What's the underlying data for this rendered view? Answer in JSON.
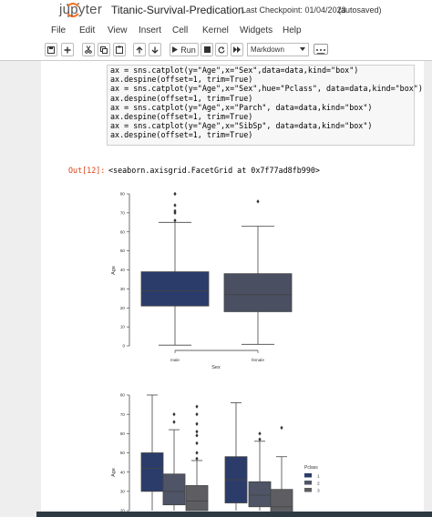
{
  "header": {
    "logo_text": "jupyter",
    "notebook_title": "Titanic-Survival-Predication",
    "checkpoint": "Last Checkpoint: 01/04/2023",
    "autosave": "(autosaved)"
  },
  "menu": [
    "File",
    "Edit",
    "View",
    "Insert",
    "Cell",
    "Kernel",
    "Widgets",
    "Help"
  ],
  "toolbar": {
    "run_label": "Run",
    "cell_type": "Markdown",
    "buttons": [
      "save-icon",
      "plus-icon",
      "cut-icon",
      "copy-icon",
      "paste-icon",
      "arrow-up-icon",
      "arrow-down-icon",
      "play-icon",
      "stop-icon",
      "restart-icon",
      "fast-forward-icon",
      "keyboard-icon"
    ]
  },
  "cell": {
    "code_lines": [
      "ax = sns.catplot(y=\"Age\",x=\"Sex\",data=data,kind=\"box\")",
      "ax.despine(offset=1, trim=True)",
      "ax = sns.catplot(y=\"Age\",x=\"Sex\",hue=\"Pclass\", data=data,kind=\"box\")",
      "ax.despine(offset=1, trim=True)",
      "ax = sns.catplot(y=\"Age\",x=\"Parch\", data=data,kind=\"box\")",
      "ax.despine(offset=1, trim=True)",
      "ax = sns.catplot(y=\"Age\",x=\"SibSp\", data=data,kind=\"box\")",
      "ax.despine(offset=1, trim=True)"
    ],
    "output_prompt": "Out[12]:",
    "output_text": "<seaborn.axisgrid.FacetGrid at 0x7f77ad8fb990>"
  },
  "chart_data": [
    {
      "type": "box",
      "xlabel": "Sex",
      "ylabel": "Age",
      "categories": [
        "male",
        "female"
      ],
      "yticks": [
        0,
        10,
        20,
        30,
        40,
        50,
        60,
        70,
        80
      ],
      "ylim": [
        0,
        80
      ],
      "colors": [
        "#2b3c6b",
        "#4a4f62"
      ],
      "boxes": [
        {
          "category": "male",
          "q1": 21,
          "median": 29,
          "q3": 39,
          "whisker_low": 0.4,
          "whisker_high": 65,
          "outliers": [
            66,
            70,
            71,
            74,
            80
          ]
        },
        {
          "category": "female",
          "q1": 18,
          "median": 27,
          "q3": 38,
          "whisker_low": 0.8,
          "whisker_high": 63,
          "outliers": [
            76
          ]
        }
      ]
    },
    {
      "type": "box",
      "ylabel": "Age",
      "legend_title": "Pclass",
      "legend_position": "right",
      "series": [
        "1",
        "2",
        "3"
      ],
      "colors": [
        "#2b3c6b",
        "#4f5567",
        "#5e5e62"
      ],
      "yticks": [
        20,
        30,
        40,
        50,
        60,
        70,
        80
      ],
      "boxes": [
        {
          "category": "male",
          "pclass": "1",
          "q1": 30,
          "median": 42,
          "q3": 50,
          "whisker_high": 80,
          "outliers": []
        },
        {
          "category": "male",
          "pclass": "2",
          "q1": 23,
          "median": 30,
          "q3": 39,
          "whisker_high": 62,
          "outliers": [
            66,
            70
          ]
        },
        {
          "category": "male",
          "pclass": "3",
          "q1": 20,
          "median": 25,
          "q3": 33,
          "whisker_high": 46,
          "outliers": [
            47,
            50,
            55,
            59,
            61,
            65,
            70,
            74
          ]
        },
        {
          "category": "female",
          "pclass": "1",
          "q1": 24,
          "median": 36,
          "q3": 48,
          "whisker_high": 76,
          "outliers": []
        },
        {
          "category": "female",
          "pclass": "2",
          "q1": 22,
          "median": 28,
          "q3": 35,
          "whisker_high": 56,
          "outliers": [
            57,
            60
          ]
        },
        {
          "category": "female",
          "pclass": "3",
          "q1": 18,
          "median": 22,
          "q3": 31,
          "whisker_high": 48,
          "outliers": [
            63
          ]
        }
      ]
    }
  ]
}
